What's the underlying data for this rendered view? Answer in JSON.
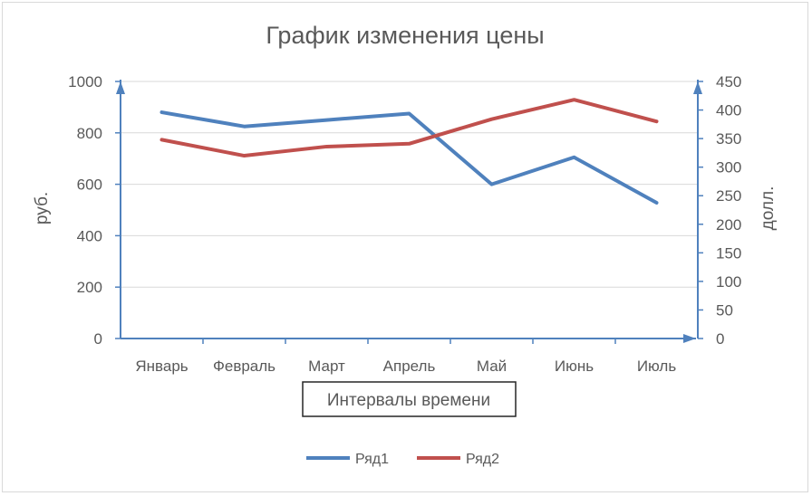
{
  "chart_data": {
    "type": "line",
    "title": "График изменения цены",
    "categories": [
      "Январь",
      "Февраль",
      "Март",
      "Апрель",
      "Май",
      "Июнь",
      "Июль"
    ],
    "xlabel": "Интервалы времени",
    "ylabel_left": "руб.",
    "ylabel_right": "долл.",
    "y_left": {
      "min": 0,
      "max": 1000,
      "step": 200,
      "ticks": [
        "0",
        "200",
        "400",
        "600",
        "800",
        "1000"
      ]
    },
    "y_right": {
      "min": 0,
      "max": 450,
      "step": 50,
      "ticks": [
        "0",
        "50",
        "100",
        "150",
        "200",
        "250",
        "300",
        "350",
        "400",
        "450"
      ]
    },
    "grid": true,
    "legend_position": "bottom",
    "series": [
      {
        "name": "Ряд1",
        "axis": "left",
        "color": "#4f81bd",
        "values": [
          880,
          825,
          850,
          875,
          600,
          705,
          528
        ]
      },
      {
        "name": "Ряд2",
        "axis": "right",
        "color": "#c0504d",
        "values": [
          348,
          320,
          336,
          341,
          384,
          418,
          380
        ]
      }
    ]
  },
  "colors": {
    "axis": "#4f81bd",
    "grid": "#d9d9d9",
    "text": "#595959"
  }
}
